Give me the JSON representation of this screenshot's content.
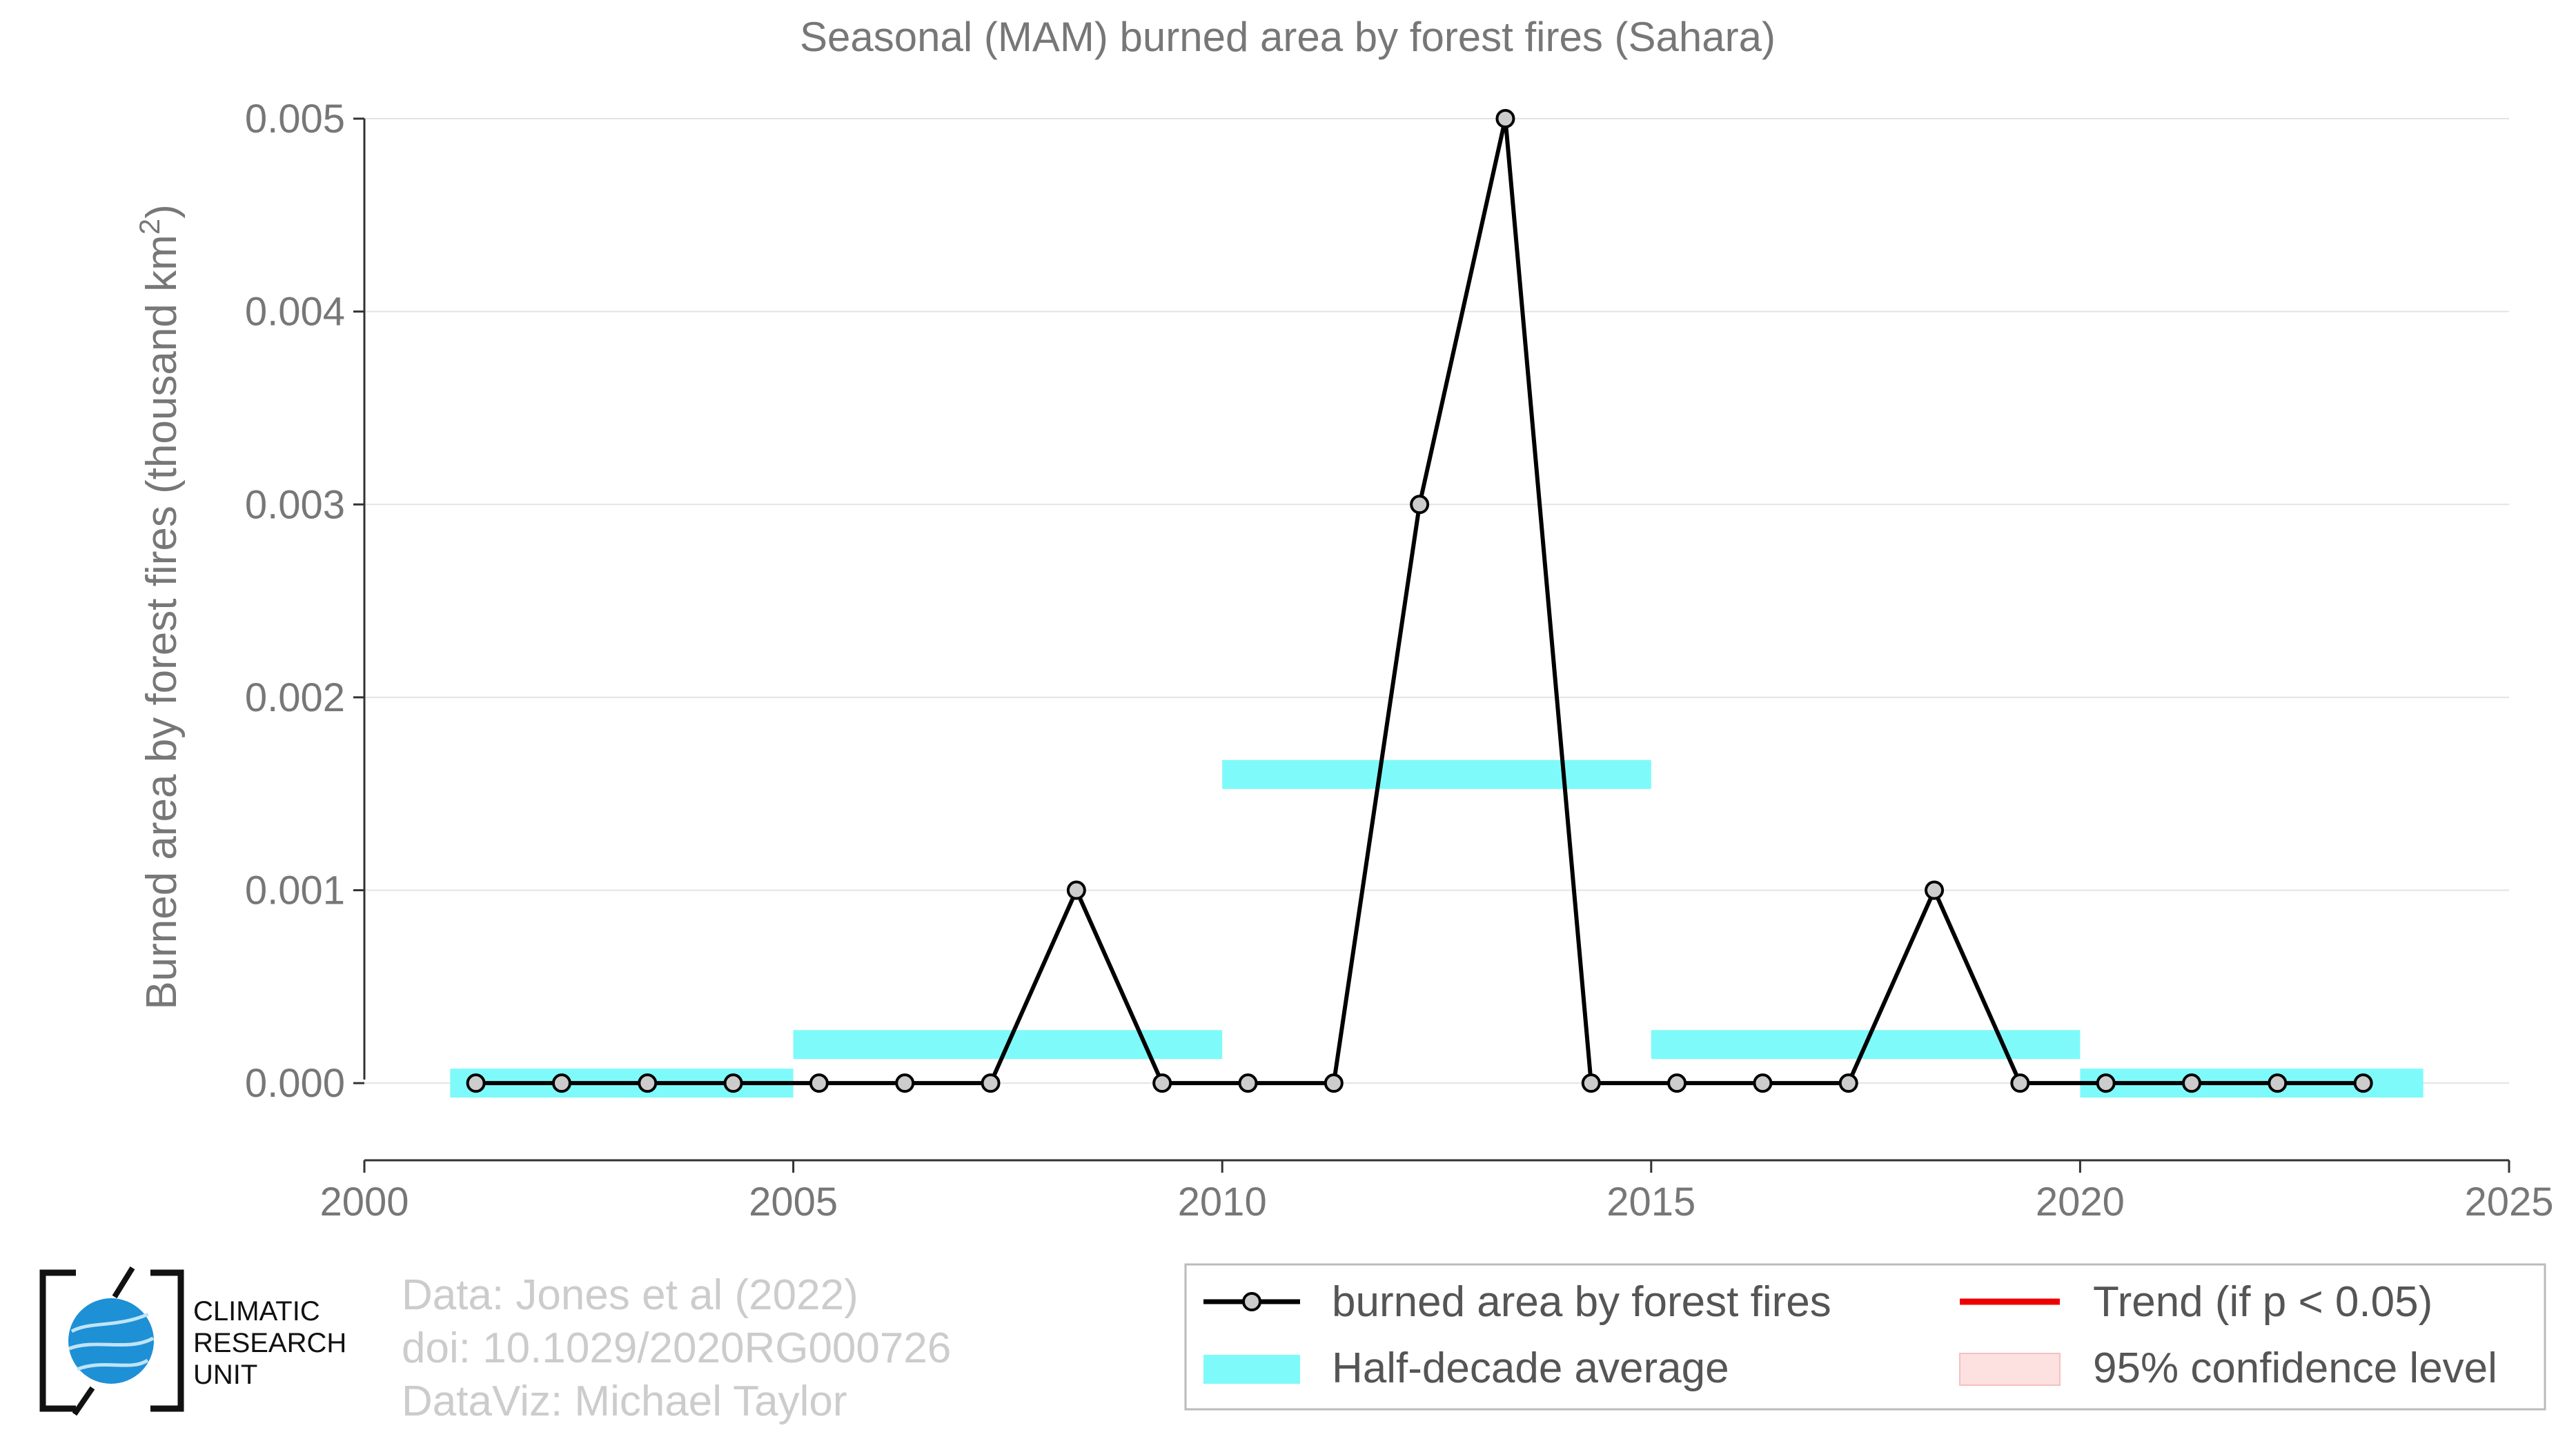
{
  "chart_data": {
    "type": "line",
    "title": "Seasonal (MAM) burned area by forest fires (Sahara)",
    "ylabel": "Burned area by forest fires (thousand km²)",
    "ylabel_main": "Burned area by forest fires (thousand km",
    "ylabel_sup": "2",
    "ylabel_tail": ")",
    "xlabel": "",
    "xlim": [
      2000,
      2025
    ],
    "ylim": [
      -0.0004,
      0.005
    ],
    "x_ticks": [
      2000,
      2005,
      2010,
      2015,
      2020,
      2025
    ],
    "y_ticks": [
      "0.000",
      "0.001",
      "0.002",
      "0.003",
      "0.004",
      "0.005"
    ],
    "y_tick_values": [
      0,
      0.001,
      0.002,
      0.003,
      0.004,
      0.005
    ],
    "grid": "horizontal",
    "series": [
      {
        "name": "burned area by forest fires",
        "color": "#000000",
        "marker_fill": "#cccccc",
        "x": [
          2001.3,
          2002.3,
          2003.3,
          2004.3,
          2005.3,
          2006.3,
          2007.3,
          2008.3,
          2009.3,
          2010.3,
          2011.3,
          2012.3,
          2013.3,
          2014.3,
          2015.3,
          2016.3,
          2017.3,
          2018.3,
          2019.3,
          2020.3,
          2021.3,
          2022.3,
          2023.3
        ],
        "values": [
          0,
          0,
          0,
          0,
          0,
          0,
          0,
          0.001,
          0,
          0,
          0,
          0.003,
          0.005,
          0,
          0,
          0,
          0,
          0.001,
          0,
          0,
          0,
          0,
          0
        ]
      }
    ],
    "half_decade_average": {
      "name": "Half-decade average",
      "color": "#7ffafa",
      "segments": [
        {
          "x_start": 2001,
          "x_end": 2005,
          "value": 0
        },
        {
          "x_start": 2005,
          "x_end": 2010,
          "value": 0.0002
        },
        {
          "x_start": 2010,
          "x_end": 2015,
          "value": 0.0016
        },
        {
          "x_start": 2015,
          "x_end": 2020,
          "value": 0.0002
        },
        {
          "x_start": 2020,
          "x_end": 2024,
          "value": 0
        }
      ]
    },
    "legend": [
      {
        "key": "line",
        "label": "burned area by forest fires",
        "color": "#000000"
      },
      {
        "key": "trend",
        "label": "Trend (if p < 0.05)",
        "color": "#ee0000"
      },
      {
        "key": "band",
        "label": "Half-decade average",
        "color": "#7ffafa"
      },
      {
        "key": "ci",
        "label": "95% confidence level",
        "color": "#fde0e0"
      }
    ],
    "legend_placement": "bottom-right"
  },
  "credits": [
    "Data: Jones et al (2022)",
    "doi: 10.1029/2020RG000726",
    "DataViz: Michael Taylor"
  ],
  "logo": {
    "lines": [
      "CLIMATIC",
      "RESEARCH",
      "UNIT"
    ],
    "globe_color": "#1e90d6"
  }
}
